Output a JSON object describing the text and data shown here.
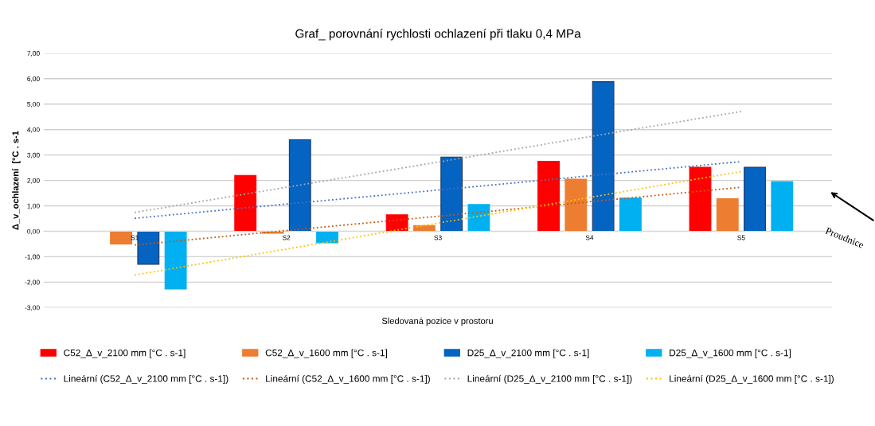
{
  "chart_data": {
    "type": "bar",
    "title": "Graf_ porovnání rychlosti ochlazení při tlaku 0,4 MPa",
    "xlabel": "Sledovaná pozice v prostoru",
    "ylabel": "Δ_v_ochlazení  [°C . s-1",
    "categories": [
      "S1",
      "S2",
      "S3",
      "S4",
      "S5"
    ],
    "series": [
      {
        "name": "C52_Δ_v_2100 mm [°C . s-1]",
        "color": "#ff0000",
        "values": [
          0,
          2.2,
          0.65,
          2.75,
          2.52
        ]
      },
      {
        "name": "C52_Δ_v_1600 mm [°C . s-1]",
        "color": "#ed7d31",
        "values": [
          -0.5,
          -0.08,
          0.22,
          2.05,
          1.28
        ]
      },
      {
        "name": "D25_Δ_v_2100 mm [°C . s-1]",
        "color": "#0563c1",
        "values": [
          -1.3,
          3.6,
          2.92,
          5.88,
          2.52
        ]
      },
      {
        "name": "D25_Δ_v_1600 mm [°C . s-1]",
        "color": "#00b0f0",
        "values": [
          -2.27,
          -0.45,
          1.05,
          1.3,
          1.95
        ]
      },
      {
        "type": "line",
        "name": "Lineární (C52_Δ_v_2100 mm [°C . s-1])",
        "color": "#4472c4",
        "line_style": "dotted",
        "values": [
          0.51,
          1.07,
          1.62,
          2.18,
          2.74
        ]
      },
      {
        "type": "line",
        "name": "Lineární (C52_Δ_v_1600 mm [°C . s-1])",
        "color": "#c55a11",
        "line_style": "dotted",
        "values": [
          -0.54,
          0.03,
          0.59,
          1.16,
          1.73
        ]
      },
      {
        "type": "line",
        "name": "Lineární (D25_Δ_v_2100 mm [°C . s-1])",
        "color": "#a5a5a5",
        "line_style": "dotted",
        "values": [
          0.74,
          1.73,
          2.72,
          3.72,
          4.71
        ]
      },
      {
        "type": "line",
        "name": "Lineární (D25_Δ_v_1600 mm [°C . s-1])",
        "color": "#ffc000",
        "line_style": "dotted",
        "values": [
          -1.72,
          -0.7,
          0.32,
          1.33,
          2.35
        ]
      }
    ],
    "ylim": [
      -3,
      7
    ],
    "yticks": [
      {
        "value": -3,
        "label": "-3,00"
      },
      {
        "value": -2,
        "label": "-2,00"
      },
      {
        "value": -1,
        "label": "-1,00"
      },
      {
        "value": 0,
        "label": "0,00"
      },
      {
        "value": 1,
        "label": "1,00"
      },
      {
        "value": 2,
        "label": "2,00"
      },
      {
        "value": 3,
        "label": "3,00"
      },
      {
        "value": 4,
        "label": "4,00"
      },
      {
        "value": 5,
        "label": "5,00"
      },
      {
        "value": 6,
        "label": "6,00"
      },
      {
        "value": 7,
        "label": "7,00"
      }
    ],
    "grid": "y",
    "legend": "bottom",
    "marker": "none",
    "annotations": [
      "Proudnice"
    ]
  }
}
